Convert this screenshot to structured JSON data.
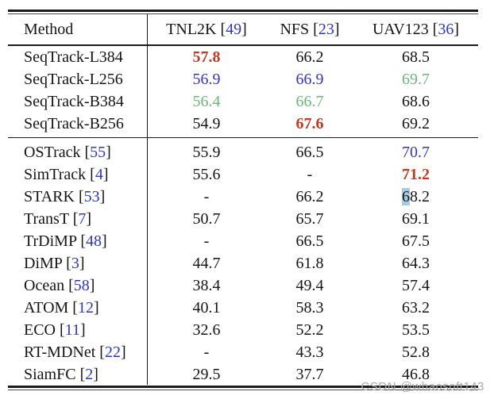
{
  "colors": {
    "text": "#151515",
    "rule": "#1a1a1a",
    "best_red": "#c43a20",
    "second_blue": "#3333cc",
    "third_green": "#68b976",
    "citation_blue": "#2c35c9",
    "selection_highlight": "#a9cbe2",
    "watermark_gray": "#a8a8a8"
  },
  "header": {
    "method_label": "Method",
    "columns": [
      {
        "name": "TNL2K",
        "cite": "49"
      },
      {
        "name": "NFS",
        "cite": "23"
      },
      {
        "name": "UAV123",
        "cite": "36"
      }
    ]
  },
  "groups": [
    {
      "rows": [
        {
          "method": {
            "name": "SeqTrack-L384",
            "cite": null
          },
          "cells": [
            {
              "text": "57.8",
              "style": "best"
            },
            {
              "text": "66.2",
              "style": "normal"
            },
            {
              "text": "68.5",
              "style": "normal"
            }
          ]
        },
        {
          "method": {
            "name": "SeqTrack-L256",
            "cite": null
          },
          "cells": [
            {
              "text": "56.9",
              "style": "second"
            },
            {
              "text": "66.9",
              "style": "second"
            },
            {
              "text": "69.7",
              "style": "third"
            }
          ]
        },
        {
          "method": {
            "name": "SeqTrack-B384",
            "cite": null
          },
          "cells": [
            {
              "text": "56.4",
              "style": "third"
            },
            {
              "text": "66.7",
              "style": "third"
            },
            {
              "text": "68.6",
              "style": "normal"
            }
          ]
        },
        {
          "method": {
            "name": "SeqTrack-B256",
            "cite": null
          },
          "cells": [
            {
              "text": "54.9",
              "style": "normal"
            },
            {
              "text": "67.6",
              "style": "best"
            },
            {
              "text": "69.2",
              "style": "normal"
            }
          ]
        }
      ]
    },
    {
      "rows": [
        {
          "method": {
            "name": "OSTrack",
            "cite": "55"
          },
          "cells": [
            {
              "text": "55.9",
              "style": "normal"
            },
            {
              "text": "66.5",
              "style": "normal"
            },
            {
              "text": "70.7",
              "style": "second"
            }
          ]
        },
        {
          "method": {
            "name": "SimTrack",
            "cite": "4"
          },
          "cells": [
            {
              "text": "55.6",
              "style": "normal"
            },
            {
              "text": "-",
              "style": "normal"
            },
            {
              "text": "71.2",
              "style": "best"
            }
          ]
        },
        {
          "method": {
            "name": "STARK",
            "cite": "53"
          },
          "cells": [
            {
              "text": "-",
              "style": "normal"
            },
            {
              "text": "66.2",
              "style": "normal"
            },
            {
              "text": "68.2",
              "style": "normal",
              "highlight_prefix": "6"
            }
          ]
        },
        {
          "method": {
            "name": "TransT",
            "cite": "7"
          },
          "cells": [
            {
              "text": "50.7",
              "style": "normal"
            },
            {
              "text": "65.7",
              "style": "normal"
            },
            {
              "text": "69.1",
              "style": "normal"
            }
          ]
        },
        {
          "method": {
            "name": "TrDiMP",
            "cite": "48"
          },
          "cells": [
            {
              "text": "-",
              "style": "normal"
            },
            {
              "text": "66.5",
              "style": "normal"
            },
            {
              "text": "67.5",
              "style": "normal"
            }
          ]
        },
        {
          "method": {
            "name": "DiMP",
            "cite": "3"
          },
          "cells": [
            {
              "text": "44.7",
              "style": "normal"
            },
            {
              "text": "61.8",
              "style": "normal"
            },
            {
              "text": "64.3",
              "style": "normal"
            }
          ]
        },
        {
          "method": {
            "name": "Ocean",
            "cite": "58"
          },
          "cells": [
            {
              "text": "38.4",
              "style": "normal"
            },
            {
              "text": "49.4",
              "style": "normal"
            },
            {
              "text": "57.4",
              "style": "normal"
            }
          ]
        },
        {
          "method": {
            "name": "ATOM",
            "cite": "12"
          },
          "cells": [
            {
              "text": "40.1",
              "style": "normal"
            },
            {
              "text": "58.3",
              "style": "normal"
            },
            {
              "text": "63.2",
              "style": "normal"
            }
          ]
        },
        {
          "method": {
            "name": "ECO",
            "cite": "11"
          },
          "cells": [
            {
              "text": "32.6",
              "style": "normal"
            },
            {
              "text": "52.2",
              "style": "normal"
            },
            {
              "text": "53.5",
              "style": "normal"
            }
          ]
        },
        {
          "method": {
            "name": "RT-MDNet",
            "cite": "22"
          },
          "cells": [
            {
              "text": "-",
              "style": "normal"
            },
            {
              "text": "43.3",
              "style": "normal"
            },
            {
              "text": "52.8",
              "style": "normal"
            }
          ]
        },
        {
          "method": {
            "name": "SiamFC",
            "cite": "2"
          },
          "cells": [
            {
              "text": "29.5",
              "style": "normal"
            },
            {
              "text": "37.7",
              "style": "normal"
            },
            {
              "text": "46.8",
              "style": "normal"
            }
          ]
        }
      ]
    }
  ],
  "watermark": "CSDN @whaosoft143"
}
